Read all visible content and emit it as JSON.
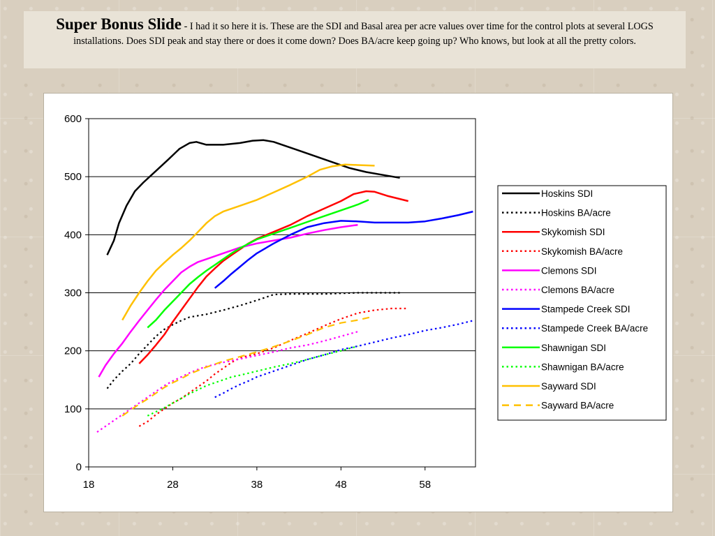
{
  "slide": {
    "title": "Super Bonus Slide",
    "separator": " - ",
    "description": "I had it so here it is.  These are the SDI and Basal area per acre values over time for the control plots at several LOGS installations.  Does SDI peak and stay there or does it come down? Does BA/acre keep going up?  Who knows, but look at all the pretty colors."
  },
  "chart_data": {
    "type": "line",
    "xlabel": "",
    "ylabel": "",
    "xlim": [
      18,
      64
    ],
    "ylim": [
      0,
      600
    ],
    "xticks": [
      18,
      28,
      38,
      48,
      58
    ],
    "yticks": [
      0,
      100,
      200,
      300,
      400,
      500,
      600
    ],
    "grid": "horizontal",
    "legend_position": "right",
    "series": [
      {
        "name": "Hoskins SDI",
        "color": "#000000",
        "dash": "solid",
        "points": [
          [
            20.2,
            365
          ],
          [
            21,
            390
          ],
          [
            21.6,
            420
          ],
          [
            22.5,
            450
          ],
          [
            23.5,
            475
          ],
          [
            24.5,
            490
          ],
          [
            26,
            510
          ],
          [
            27.5,
            530
          ],
          [
            28.8,
            548
          ],
          [
            30,
            558
          ],
          [
            30.8,
            560
          ],
          [
            32,
            555
          ],
          [
            34,
            555
          ],
          [
            36,
            558
          ],
          [
            37.5,
            562
          ],
          [
            38.8,
            563
          ],
          [
            40,
            560
          ],
          [
            41,
            555
          ],
          [
            43,
            545
          ],
          [
            45,
            535
          ],
          [
            47,
            525
          ],
          [
            49,
            515
          ],
          [
            51,
            508
          ],
          [
            53,
            503
          ],
          [
            55,
            498
          ]
        ]
      },
      {
        "name": "Hoskins BA/acre",
        "color": "#000000",
        "dash": "dot",
        "points": [
          [
            20.2,
            135
          ],
          [
            21,
            150
          ],
          [
            22,
            165
          ],
          [
            23,
            178
          ],
          [
            24,
            195
          ],
          [
            25,
            210
          ],
          [
            26,
            225
          ],
          [
            27,
            237
          ],
          [
            28,
            245
          ],
          [
            29,
            252
          ],
          [
            30,
            258
          ],
          [
            32,
            263
          ],
          [
            34,
            270
          ],
          [
            36,
            278
          ],
          [
            38,
            287
          ],
          [
            40,
            297
          ],
          [
            42,
            298
          ],
          [
            44,
            298
          ],
          [
            46,
            298
          ],
          [
            48,
            299
          ],
          [
            50,
            300
          ],
          [
            52,
            300
          ],
          [
            55,
            300
          ]
        ]
      },
      {
        "name": "Skykomish SDI",
        "color": "#ff0000",
        "dash": "solid",
        "points": [
          [
            24,
            178
          ],
          [
            25,
            193
          ],
          [
            26,
            210
          ],
          [
            27,
            228
          ],
          [
            28,
            250
          ],
          [
            29,
            270
          ],
          [
            30,
            290
          ],
          [
            31,
            310
          ],
          [
            32,
            328
          ],
          [
            33,
            342
          ],
          [
            34,
            355
          ],
          [
            35,
            365
          ],
          [
            36,
            375
          ],
          [
            37,
            385
          ],
          [
            38,
            393
          ],
          [
            40,
            405
          ],
          [
            42,
            417
          ],
          [
            44,
            432
          ],
          [
            46,
            445
          ],
          [
            48,
            458
          ],
          [
            49.5,
            470
          ],
          [
            51,
            475
          ],
          [
            52,
            474
          ],
          [
            53.5,
            467
          ],
          [
            56,
            458
          ]
        ]
      },
      {
        "name": "Skykomish BA/acre",
        "color": "#ff0000",
        "dash": "dot",
        "points": [
          [
            24,
            70
          ],
          [
            25,
            78
          ],
          [
            26,
            90
          ],
          [
            27,
            100
          ],
          [
            28,
            110
          ],
          [
            29,
            118
          ],
          [
            30,
            128
          ],
          [
            31,
            138
          ],
          [
            32,
            148
          ],
          [
            33,
            160
          ],
          [
            34,
            170
          ],
          [
            35,
            180
          ],
          [
            36,
            188
          ],
          [
            38,
            195
          ],
          [
            40,
            205
          ],
          [
            42,
            218
          ],
          [
            44,
            230
          ],
          [
            46,
            243
          ],
          [
            48,
            255
          ],
          [
            50,
            265
          ],
          [
            52,
            270
          ],
          [
            54,
            273
          ],
          [
            56,
            273
          ]
        ]
      },
      {
        "name": "Clemons SDI",
        "color": "#ff00ff",
        "dash": "solid",
        "points": [
          [
            19.2,
            155
          ],
          [
            20,
            175
          ],
          [
            21,
            195
          ],
          [
            22,
            213
          ],
          [
            23,
            233
          ],
          [
            24,
            252
          ],
          [
            25,
            270
          ],
          [
            26,
            288
          ],
          [
            27,
            305
          ],
          [
            28,
            320
          ],
          [
            29,
            335
          ],
          [
            30,
            345
          ],
          [
            31,
            353
          ],
          [
            32,
            358
          ],
          [
            34,
            368
          ],
          [
            36,
            378
          ],
          [
            38,
            385
          ],
          [
            40,
            390
          ],
          [
            42,
            395
          ],
          [
            44,
            402
          ],
          [
            46,
            408
          ],
          [
            48,
            413
          ],
          [
            50,
            417
          ]
        ]
      },
      {
        "name": "Clemons BA/acre",
        "color": "#ff00ff",
        "dash": "dot",
        "points": [
          [
            19,
            60
          ],
          [
            20,
            70
          ],
          [
            21,
            80
          ],
          [
            22,
            90
          ],
          [
            23,
            100
          ],
          [
            24,
            110
          ],
          [
            25,
            120
          ],
          [
            26,
            130
          ],
          [
            27,
            140
          ],
          [
            28,
            148
          ],
          [
            29,
            155
          ],
          [
            30,
            162
          ],
          [
            31,
            168
          ],
          [
            32,
            173
          ],
          [
            34,
            180
          ],
          [
            36,
            186
          ],
          [
            38,
            192
          ],
          [
            40,
            198
          ],
          [
            42,
            205
          ],
          [
            44,
            210
          ],
          [
            46,
            217
          ],
          [
            48,
            225
          ],
          [
            50,
            233
          ]
        ]
      },
      {
        "name": "Stampede Creek SDI",
        "color": "#0000ff",
        "dash": "solid",
        "points": [
          [
            33,
            308
          ],
          [
            34,
            320
          ],
          [
            35,
            333
          ],
          [
            36,
            345
          ],
          [
            37,
            357
          ],
          [
            38,
            368
          ],
          [
            40,
            385
          ],
          [
            42,
            400
          ],
          [
            44,
            413
          ],
          [
            46,
            420
          ],
          [
            48,
            424
          ],
          [
            50,
            423
          ],
          [
            52,
            421
          ],
          [
            54,
            421
          ],
          [
            56,
            421
          ],
          [
            58,
            423
          ],
          [
            60,
            428
          ],
          [
            62,
            434
          ],
          [
            63.7,
            440
          ]
        ]
      },
      {
        "name": "Stampede Creek BA/acre",
        "color": "#0000ff",
        "dash": "dot",
        "points": [
          [
            33,
            120
          ],
          [
            34,
            127
          ],
          [
            35,
            135
          ],
          [
            36,
            142
          ],
          [
            37,
            148
          ],
          [
            38,
            155
          ],
          [
            40,
            165
          ],
          [
            42,
            175
          ],
          [
            44,
            185
          ],
          [
            46,
            193
          ],
          [
            48,
            202
          ],
          [
            50,
            208
          ],
          [
            52,
            215
          ],
          [
            54,
            222
          ],
          [
            56,
            228
          ],
          [
            58,
            235
          ],
          [
            60,
            240
          ],
          [
            62,
            246
          ],
          [
            63.7,
            252
          ]
        ]
      },
      {
        "name": "Shawnigan SDI",
        "color": "#00ff00",
        "dash": "solid",
        "points": [
          [
            25,
            240
          ],
          [
            26,
            253
          ],
          [
            27,
            270
          ],
          [
            28,
            285
          ],
          [
            29,
            300
          ],
          [
            30,
            315
          ],
          [
            31,
            327
          ],
          [
            32,
            338
          ],
          [
            33,
            348
          ],
          [
            34,
            358
          ],
          [
            35,
            368
          ],
          [
            36,
            377
          ],
          [
            38,
            392
          ],
          [
            40,
            402
          ],
          [
            42,
            412
          ],
          [
            44,
            422
          ],
          [
            46,
            432
          ],
          [
            48,
            442
          ],
          [
            50,
            452
          ],
          [
            51.3,
            460
          ]
        ]
      },
      {
        "name": "Shawnigan BA/acre",
        "color": "#00ff00",
        "dash": "dot",
        "points": [
          [
            25,
            88
          ],
          [
            26,
            95
          ],
          [
            27,
            102
          ],
          [
            28,
            110
          ],
          [
            29,
            118
          ],
          [
            30,
            126
          ],
          [
            31,
            133
          ],
          [
            32,
            140
          ],
          [
            33,
            145
          ],
          [
            34,
            150
          ],
          [
            35,
            155
          ],
          [
            36,
            158
          ],
          [
            38,
            165
          ],
          [
            40,
            172
          ],
          [
            42,
            178
          ],
          [
            44,
            185
          ],
          [
            46,
            193
          ],
          [
            48,
            200
          ],
          [
            50,
            208
          ]
        ]
      },
      {
        "name": "Sayward SDI",
        "color": "#ffc000",
        "dash": "solid",
        "points": [
          [
            22,
            253
          ],
          [
            23,
            278
          ],
          [
            24,
            300
          ],
          [
            25,
            320
          ],
          [
            26,
            338
          ],
          [
            27,
            352
          ],
          [
            28,
            365
          ],
          [
            29,
            377
          ],
          [
            30,
            390
          ],
          [
            31,
            405
          ],
          [
            32,
            420
          ],
          [
            33,
            432
          ],
          [
            34,
            440
          ],
          [
            36,
            450
          ],
          [
            38,
            460
          ],
          [
            40,
            473
          ],
          [
            42,
            486
          ],
          [
            44,
            500
          ],
          [
            45.5,
            512
          ],
          [
            47,
            518
          ],
          [
            48.5,
            521
          ],
          [
            50,
            520
          ],
          [
            52,
            519
          ]
        ]
      },
      {
        "name": "Sayward BA/acre",
        "color": "#ffc000",
        "dash": "dash",
        "points": [
          [
            22,
            88
          ],
          [
            23,
            98
          ],
          [
            24,
            108
          ],
          [
            25,
            117
          ],
          [
            26,
            127
          ],
          [
            27,
            137
          ],
          [
            28,
            145
          ],
          [
            29,
            152
          ],
          [
            30,
            160
          ],
          [
            31,
            166
          ],
          [
            32,
            172
          ],
          [
            33,
            177
          ],
          [
            34,
            182
          ],
          [
            36,
            190
          ],
          [
            38,
            198
          ],
          [
            40,
            207
          ],
          [
            42,
            217
          ],
          [
            44,
            228
          ],
          [
            46,
            240
          ],
          [
            48,
            248
          ],
          [
            50,
            253
          ],
          [
            51.5,
            258
          ]
        ]
      }
    ]
  }
}
